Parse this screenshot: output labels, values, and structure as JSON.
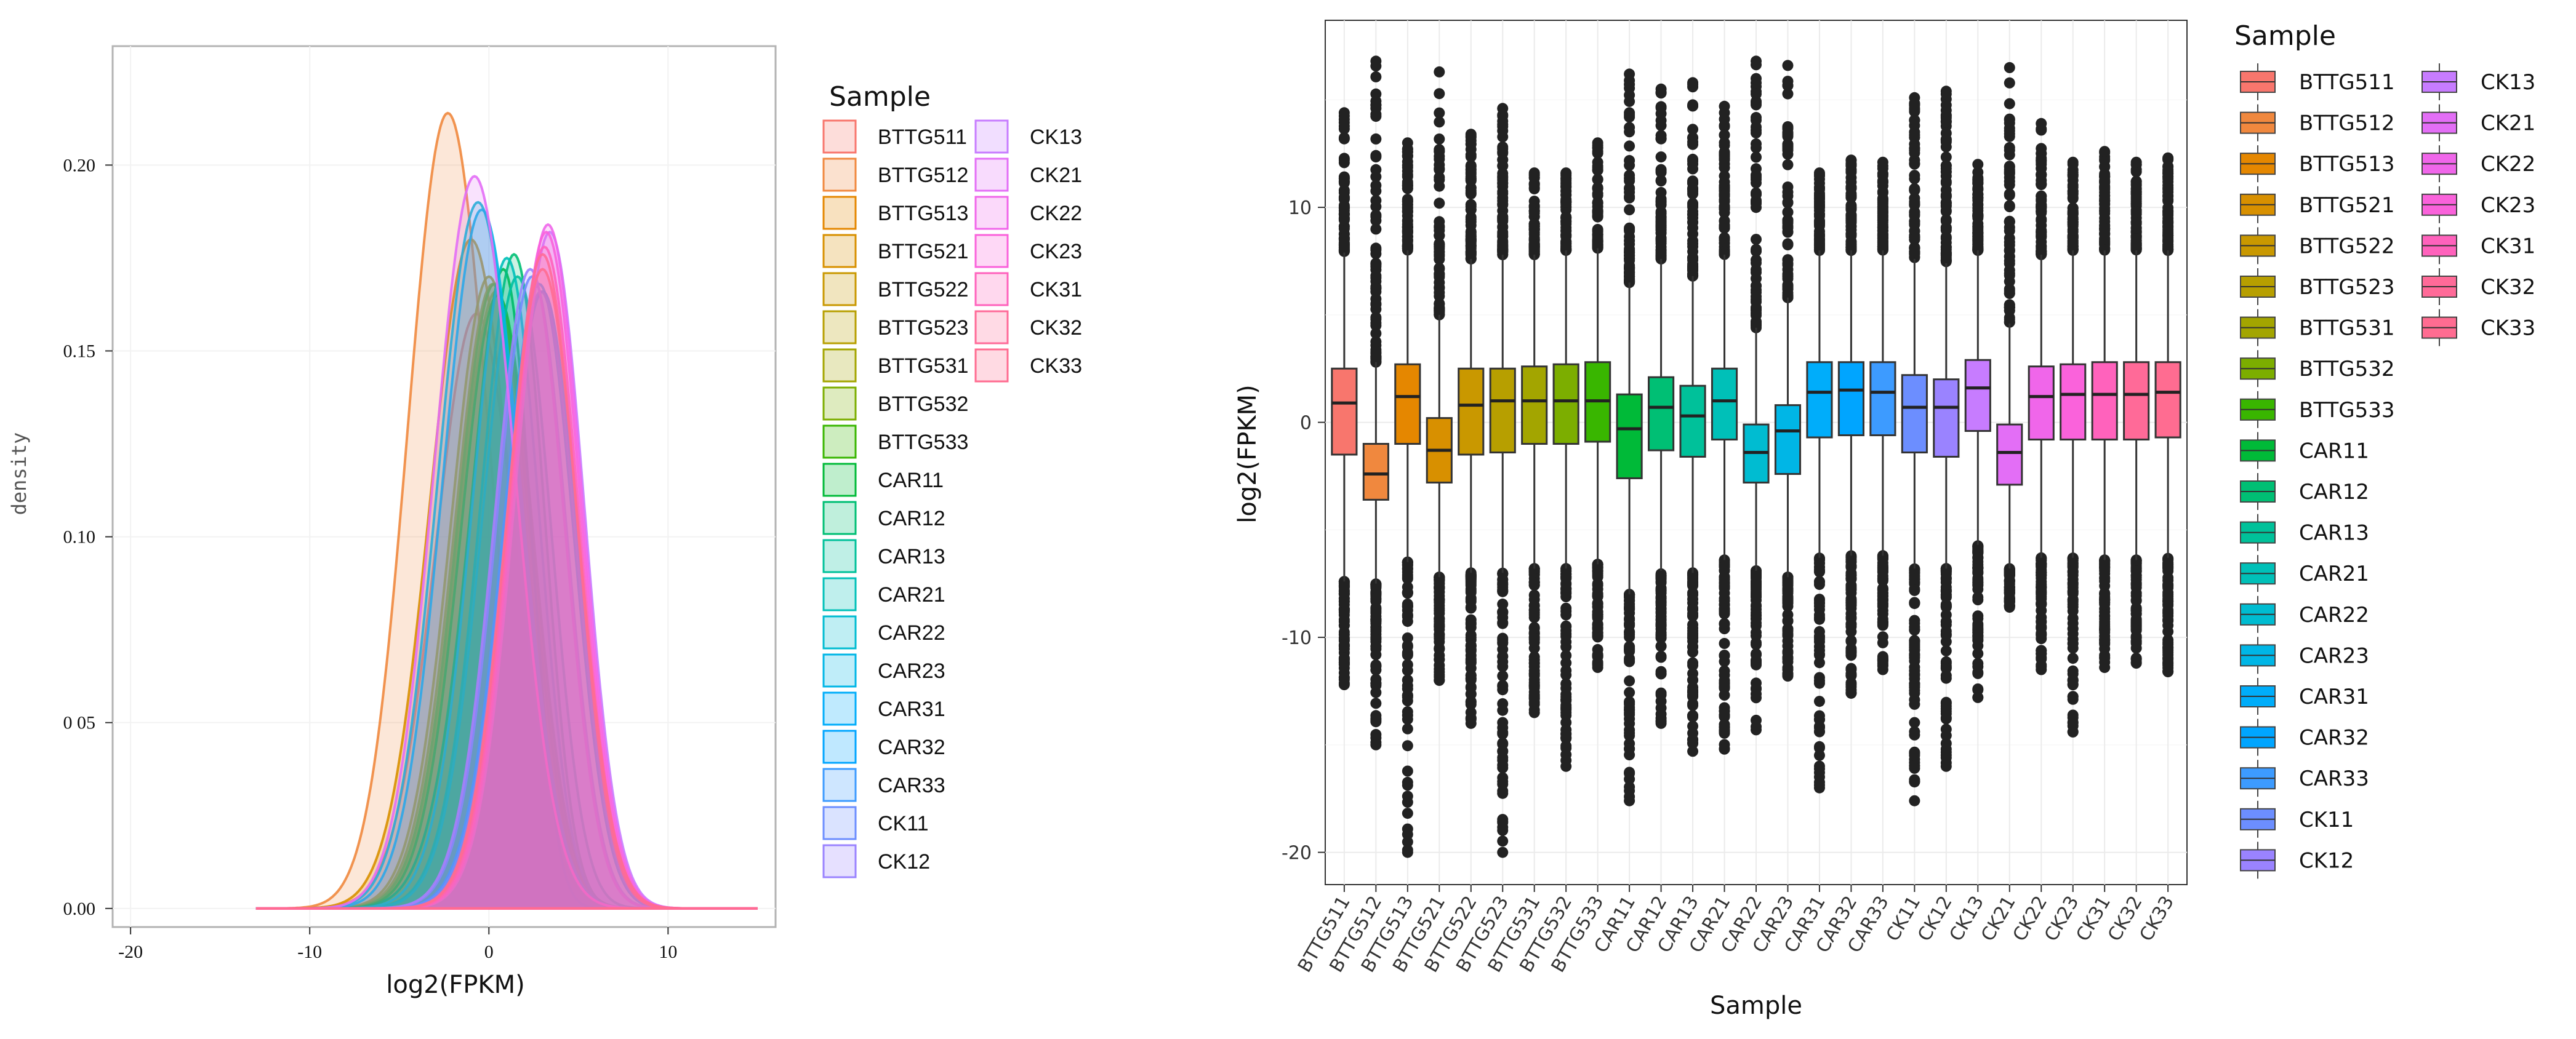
{
  "chart_data": [
    {
      "type": "area",
      "title": "",
      "xlabel": "log2(FPKM)",
      "ylabel": "density",
      "xlim": [
        -21,
        16
      ],
      "ylim": [
        -0.005,
        0.232
      ],
      "xticks": [
        -20,
        -10,
        0,
        10
      ],
      "xtick_labels": [
        "-20",
        "-10",
        "0",
        "10"
      ],
      "yticks": [
        0.0,
        0.05,
        0.1,
        0.15,
        0.2
      ],
      "ytick_labels": [
        "0.00",
        "0 05",
        "0.10",
        "0.15",
        "0.20"
      ],
      "legend_title": "Sample",
      "legend_position": "right",
      "series": [
        {
          "name": "BTTG511",
          "color": "#F8766D",
          "peak_x": -0.7,
          "peak_y": 0.16,
          "sigma": 2.6,
          "alpha": -0.8
        },
        {
          "name": "BTTG512",
          "color": "#F0883E",
          "peak_x": -2.3,
          "peak_y": 0.214,
          "sigma": 2.4,
          "alpha": 0.5
        },
        {
          "name": "BTTG513",
          "color": "#E58700",
          "peak_x": 0.3,
          "peak_y": 0.168,
          "sigma": 2.5,
          "alpha": -1.0
        },
        {
          "name": "BTTG521",
          "color": "#D89000",
          "peak_x": -1.0,
          "peak_y": 0.18,
          "sigma": 2.5,
          "alpha": -0.6
        },
        {
          "name": "BTTG522",
          "color": "#C99800",
          "peak_x": 0.0,
          "peak_y": 0.17,
          "sigma": 2.5,
          "alpha": -0.9
        },
        {
          "name": "BTTG523",
          "color": "#B79F00",
          "peak_x": 0.2,
          "peak_y": 0.168,
          "sigma": 2.5,
          "alpha": -0.9
        },
        {
          "name": "BTTG531",
          "color": "#A3A500",
          "peak_x": 0.4,
          "peak_y": 0.166,
          "sigma": 2.5,
          "alpha": -1.0
        },
        {
          "name": "BTTG532",
          "color": "#7CAE00",
          "peak_x": 0.3,
          "peak_y": 0.168,
          "sigma": 2.5,
          "alpha": -1.0
        },
        {
          "name": "BTTG533",
          "color": "#39B600",
          "peak_x": 0.5,
          "peak_y": 0.165,
          "sigma": 2.5,
          "alpha": -1.0
        },
        {
          "name": "CAR11",
          "color": "#00BA38",
          "peak_x": 0.8,
          "peak_y": 0.172,
          "sigma": 2.6,
          "alpha": -2.0
        },
        {
          "name": "CAR12",
          "color": "#00BF74",
          "peak_x": 1.4,
          "peak_y": 0.176,
          "sigma": 2.5,
          "alpha": -1.5
        },
        {
          "name": "CAR13",
          "color": "#00C19A",
          "peak_x": 1.6,
          "peak_y": 0.17,
          "sigma": 2.5,
          "alpha": -1.2
        },
        {
          "name": "CAR21",
          "color": "#00C0B8",
          "peak_x": 1.0,
          "peak_y": 0.175,
          "sigma": 2.5,
          "alpha": -1.3
        },
        {
          "name": "CAR22",
          "color": "#00BCD1",
          "peak_x": -0.6,
          "peak_y": 0.19,
          "sigma": 2.4,
          "alpha": -0.5
        },
        {
          "name": "CAR23",
          "color": "#00B6E6",
          "peak_x": -0.4,
          "peak_y": 0.188,
          "sigma": 2.4,
          "alpha": -0.6
        },
        {
          "name": "CAR31",
          "color": "#00ADFA",
          "peak_x": 2.8,
          "peak_y": 0.168,
          "sigma": 2.4,
          "alpha": -1.0
        },
        {
          "name": "CAR32",
          "color": "#00A5FF",
          "peak_x": 3.0,
          "peak_y": 0.166,
          "sigma": 2.4,
          "alpha": -1.0
        },
        {
          "name": "CAR33",
          "color": "#3D9BFF",
          "peak_x": 2.9,
          "peak_y": 0.166,
          "sigma": 2.4,
          "alpha": -1.0
        },
        {
          "name": "CK11",
          "color": "#6C8EFF",
          "peak_x": 2.4,
          "peak_y": 0.17,
          "sigma": 2.4,
          "alpha": -1.0
        },
        {
          "name": "CK12",
          "color": "#9A83FF",
          "peak_x": 2.3,
          "peak_y": 0.172,
          "sigma": 2.4,
          "alpha": -1.0
        },
        {
          "name": "CK13",
          "color": "#C77CFF",
          "peak_x": 3.4,
          "peak_y": 0.182,
          "sigma": 2.3,
          "alpha": -0.9
        },
        {
          "name": "CK21",
          "color": "#E36EF6",
          "peak_x": -0.8,
          "peak_y": 0.197,
          "sigma": 2.3,
          "alpha": -0.3
        },
        {
          "name": "CK22",
          "color": "#F066EA",
          "peak_x": 3.3,
          "peak_y": 0.184,
          "sigma": 2.3,
          "alpha": -0.9
        },
        {
          "name": "CK23",
          "color": "#FA62DB",
          "peak_x": 3.2,
          "peak_y": 0.182,
          "sigma": 2.3,
          "alpha": -0.9
        },
        {
          "name": "CK31",
          "color": "#FF62BC",
          "peak_x": 3.1,
          "peak_y": 0.178,
          "sigma": 2.3,
          "alpha": -0.9
        },
        {
          "name": "CK32",
          "color": "#FF6A98",
          "peak_x": 3.0,
          "peak_y": 0.176,
          "sigma": 2.3,
          "alpha": -0.9
        },
        {
          "name": "CK33",
          "color": "#FF6C91",
          "peak_x": 3.0,
          "peak_y": 0.172,
          "sigma": 2.3,
          "alpha": -0.8
        }
      ]
    },
    {
      "type": "box",
      "title": "",
      "xlabel": "Sample",
      "ylabel": "log2(FPKM)",
      "ylim": [
        -21.5,
        18.7
      ],
      "yticks": [
        -20,
        -10,
        0,
        10
      ],
      "ytick_labels": [
        "-20",
        "-10",
        "0",
        "10"
      ],
      "legend_title": "Sample",
      "legend_position": "right",
      "categories": [
        "BTTG511",
        "BTTG512",
        "BTTG513",
        "BTTG521",
        "BTTG522",
        "BTTG523",
        "BTTG531",
        "BTTG532",
        "BTTG533",
        "CAR11",
        "CAR12",
        "CAR13",
        "CAR21",
        "CAR22",
        "CAR23",
        "CAR31",
        "CAR32",
        "CAR33",
        "CK11",
        "CK12",
        "CK13",
        "CK21",
        "CK22",
        "CK23",
        "CK31",
        "CK32",
        "CK33"
      ],
      "colors": [
        "#F8766D",
        "#F0883E",
        "#E58700",
        "#D89000",
        "#C99800",
        "#B79F00",
        "#A3A500",
        "#7CAE00",
        "#39B600",
        "#00BA38",
        "#00BF74",
        "#00C19A",
        "#00C0B8",
        "#00BCD1",
        "#00B6E6",
        "#00ADFA",
        "#00A5FF",
        "#3D9BFF",
        "#6C8EFF",
        "#9A83FF",
        "#C77CFF",
        "#E36EF6",
        "#F066EA",
        "#FA62DB",
        "#FF62BC",
        "#FF6A98",
        "#FF6C91"
      ],
      "stats": [
        {
          "q1": -1.5,
          "median": 0.9,
          "q3": 2.5,
          "lw": -7.4,
          "uw": 7.9,
          "omin": -12.2,
          "omax": 14.4
        },
        {
          "q1": -3.6,
          "median": -2.4,
          "q3": -1.0,
          "lw": -7.5,
          "uw": 2.8,
          "omin": -15.0,
          "omax": 16.8
        },
        {
          "q1": -1.0,
          "median": 1.2,
          "q3": 2.7,
          "lw": -6.5,
          "uw": 8.0,
          "omin": -20.0,
          "omax": 13.0
        },
        {
          "q1": -2.8,
          "median": -1.3,
          "q3": 0.2,
          "lw": -7.2,
          "uw": 5.0,
          "omin": -12.0,
          "omax": 16.3
        },
        {
          "q1": -1.5,
          "median": 0.8,
          "q3": 2.5,
          "lw": -7.0,
          "uw": 7.6,
          "omin": -14.0,
          "omax": 13.4
        },
        {
          "q1": -1.4,
          "median": 1.0,
          "q3": 2.5,
          "lw": -7.0,
          "uw": 7.8,
          "omin": -20.0,
          "omax": 14.6
        },
        {
          "q1": -1.0,
          "median": 1.0,
          "q3": 2.6,
          "lw": -6.8,
          "uw": 7.8,
          "omin": -13.5,
          "omax": 11.6
        },
        {
          "q1": -1.0,
          "median": 1.0,
          "q3": 2.7,
          "lw": -6.8,
          "uw": 8.0,
          "omin": -16.0,
          "omax": 11.6
        },
        {
          "q1": -0.9,
          "median": 1.0,
          "q3": 2.8,
          "lw": -6.6,
          "uw": 8.1,
          "omin": -11.4,
          "omax": 13.0
        },
        {
          "q1": -2.6,
          "median": -0.3,
          "q3": 1.3,
          "lw": -8.0,
          "uw": 6.5,
          "omin": -17.6,
          "omax": 16.2
        },
        {
          "q1": -1.3,
          "median": 0.7,
          "q3": 2.1,
          "lw": -6.9,
          "uw": 7.6,
          "omin": -14.0,
          "omax": 15.5
        },
        {
          "q1": -1.6,
          "median": 0.3,
          "q3": 1.7,
          "lw": -7.0,
          "uw": 6.8,
          "omin": -15.3,
          "omax": 15.8
        },
        {
          "q1": -0.8,
          "median": 1.0,
          "q3": 2.5,
          "lw": -6.4,
          "uw": 7.8,
          "omin": -15.2,
          "omax": 14.7
        },
        {
          "q1": -2.8,
          "median": -1.4,
          "q3": -0.1,
          "lw": -6.9,
          "uw": 4.4,
          "omin": -14.3,
          "omax": 16.8
        },
        {
          "q1": -2.4,
          "median": -0.4,
          "q3": 0.8,
          "lw": -7.2,
          "uw": 5.8,
          "omin": -11.8,
          "omax": 16.6
        },
        {
          "q1": -0.7,
          "median": 1.4,
          "q3": 2.8,
          "lw": -6.3,
          "uw": 8.0,
          "omin": -17.0,
          "omax": 11.6
        },
        {
          "q1": -0.6,
          "median": 1.5,
          "q3": 2.8,
          "lw": -6.2,
          "uw": 8.0,
          "omin": -12.6,
          "omax": 12.2
        },
        {
          "q1": -0.6,
          "median": 1.4,
          "q3": 2.8,
          "lw": -6.2,
          "uw": 8.0,
          "omin": -11.5,
          "omax": 12.1
        },
        {
          "q1": -1.4,
          "median": 0.7,
          "q3": 2.2,
          "lw": -6.8,
          "uw": 7.6,
          "omin": -17.6,
          "omax": 15.1
        },
        {
          "q1": -1.6,
          "median": 0.7,
          "q3": 2.0,
          "lw": -6.8,
          "uw": 7.4,
          "omin": -16.0,
          "omax": 15.4
        },
        {
          "q1": -0.4,
          "median": 1.6,
          "q3": 2.9,
          "lw": -5.7,
          "uw": 8.0,
          "omin": -12.8,
          "omax": 12.0
        },
        {
          "q1": -2.9,
          "median": -1.4,
          "q3": -0.1,
          "lw": -6.8,
          "uw": 4.6,
          "omin": -8.6,
          "omax": 16.5
        },
        {
          "q1": -0.8,
          "median": 1.2,
          "q3": 2.6,
          "lw": -6.3,
          "uw": 7.8,
          "omin": -11.5,
          "omax": 13.9
        },
        {
          "q1": -0.8,
          "median": 1.3,
          "q3": 2.7,
          "lw": -6.3,
          "uw": 8.0,
          "omin": -14.4,
          "omax": 12.1
        },
        {
          "q1": -0.8,
          "median": 1.3,
          "q3": 2.8,
          "lw": -6.4,
          "uw": 8.0,
          "omin": -11.4,
          "omax": 12.6
        },
        {
          "q1": -0.8,
          "median": 1.3,
          "q3": 2.8,
          "lw": -6.4,
          "uw": 8.0,
          "omin": -11.2,
          "omax": 12.1
        },
        {
          "q1": -0.7,
          "median": 1.4,
          "q3": 2.8,
          "lw": -6.3,
          "uw": 8.0,
          "omin": -11.6,
          "omax": 12.3
        }
      ]
    }
  ]
}
